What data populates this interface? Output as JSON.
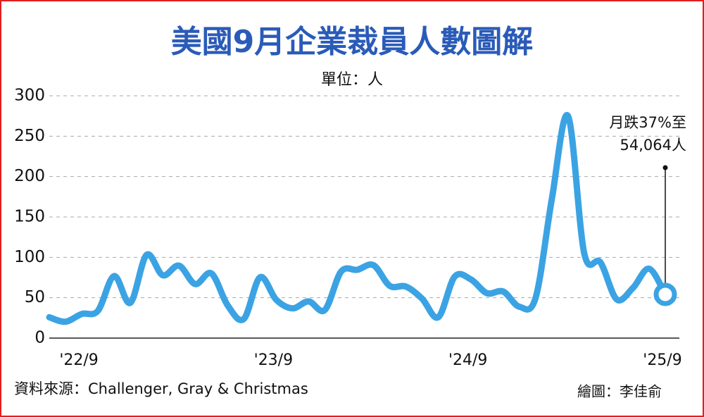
{
  "chart_data": {
    "type": "line",
    "title": "美國9月企業裁員人數圖解",
    "subtitle": "單位：人",
    "source": "資料來源：Challenger, Gray & Christmas",
    "credit": "繪圖：李佳俞",
    "annotation": [
      "月跌37%至",
      "54,064人"
    ],
    "categories": [
      null,
      null,
      "'22/9",
      null,
      null,
      null,
      null,
      null,
      null,
      null,
      null,
      null,
      null,
      null,
      "'23/9",
      null,
      null,
      null,
      null,
      null,
      null,
      null,
      null,
      null,
      null,
      null,
      "'24/9",
      null,
      null,
      null,
      null,
      null,
      null,
      null,
      null,
      null,
      null,
      null,
      "'25/9"
    ],
    "series": [
      {
        "name": "裁員人數",
        "color": "#3ba3e3",
        "values": [
          25.8,
          20.3,
          29.9,
          33.8,
          76.8,
          43.7,
          103,
          77.8,
          89.7,
          66.9,
          80.1,
          40.7,
          23.7,
          75.2,
          47.5,
          36.8,
          45.5,
          34.8,
          82.3,
          84.6,
          90.3,
          64.8,
          63.8,
          48.8,
          25.9,
          75.9,
          72.8,
          55.6,
          57.7,
          38.8,
          49.8,
          172,
          275,
          105,
          93.8,
          48,
          62,
          85.9,
          54.1
        ]
      }
    ],
    "ylim": [
      0,
      300
    ],
    "yticks": [
      0,
      50,
      100,
      150,
      200,
      250,
      300
    ],
    "grid": true
  }
}
